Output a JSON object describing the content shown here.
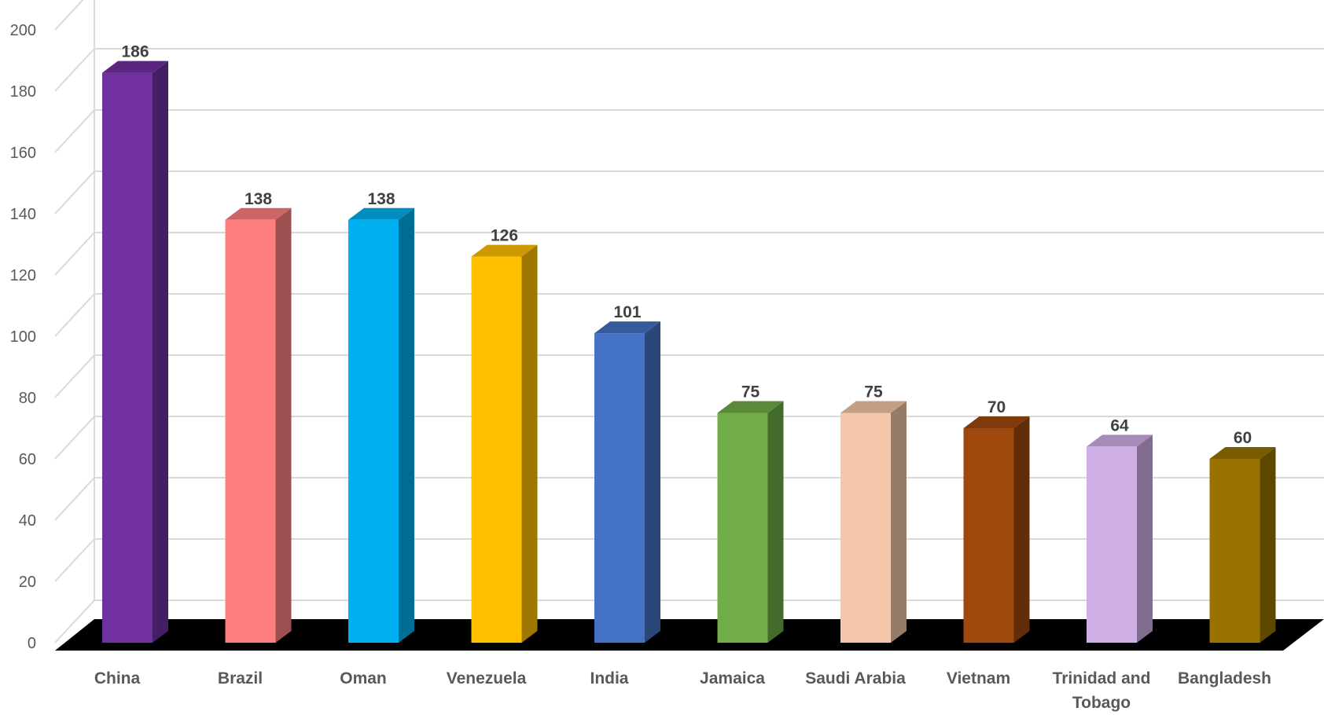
{
  "chart_data": {
    "type": "bar",
    "style": "3d-column",
    "title": "",
    "xlabel": "",
    "ylabel": "",
    "ylim": [
      0,
      200
    ],
    "yticks": [
      0,
      20,
      40,
      60,
      80,
      100,
      120,
      140,
      160,
      180,
      200
    ],
    "grid": true,
    "legend": "none",
    "floor_color": "#000000",
    "categories": [
      {
        "lines": [
          "China"
        ]
      },
      {
        "lines": [
          "Brazil"
        ]
      },
      {
        "lines": [
          "Oman"
        ]
      },
      {
        "lines": [
          "Venezuela"
        ]
      },
      {
        "lines": [
          "India"
        ]
      },
      {
        "lines": [
          "Jamaica"
        ]
      },
      {
        "lines": [
          "Saudi Arabia"
        ]
      },
      {
        "lines": [
          "Vietnam"
        ]
      },
      {
        "lines": [
          "Trinidad and",
          "Tobago"
        ]
      },
      {
        "lines": [
          "Bangladesh"
        ]
      }
    ],
    "values": [
      186,
      138,
      138,
      126,
      101,
      75,
      75,
      70,
      64,
      60
    ],
    "colors": [
      "#7030A0",
      "#FF7F7F",
      "#00B0F0",
      "#FFC000",
      "#4472C4",
      "#70AD47",
      "#F4C7AA",
      "#9E480E",
      "#CFB0E6",
      "#997300"
    ]
  }
}
